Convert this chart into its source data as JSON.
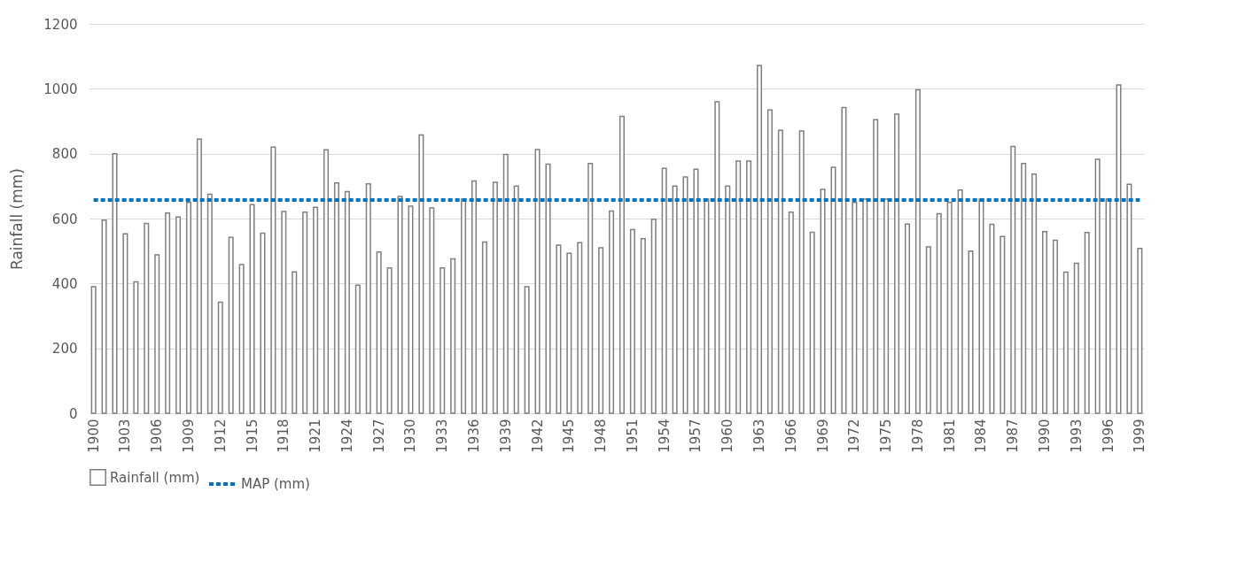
{
  "chart_data": {
    "type": "bar",
    "ylabel": "Rainfall (mm)",
    "categories": [
      "1900",
      null,
      null,
      "1903",
      null,
      null,
      "1906",
      null,
      null,
      "1909",
      null,
      null,
      "1912",
      null,
      null,
      "1915",
      null,
      null,
      "1918",
      null,
      null,
      "1921",
      null,
      null,
      "1924",
      null,
      null,
      "1927",
      null,
      null,
      "1930",
      null,
      null,
      "1933",
      null,
      null,
      "1936",
      null,
      null,
      "1939",
      null,
      null,
      "1942",
      null,
      null,
      "1945",
      null,
      null,
      "1948",
      null,
      null,
      "1951",
      null,
      null,
      "1954",
      null,
      null,
      "1957",
      null,
      null,
      "1960",
      null,
      null,
      "1963",
      null,
      null,
      "1966",
      null,
      null,
      "1969",
      null,
      null,
      "1972",
      null,
      null,
      "1975",
      null,
      null,
      "1978",
      null,
      null,
      "1981",
      null,
      null,
      "1984",
      null,
      null,
      "1987",
      null,
      null,
      "1990",
      null,
      null,
      "1993",
      null,
      null,
      "1996",
      null,
      null,
      "1999"
    ],
    "series": [
      {
        "name": "Rainfall (mm)",
        "color": "#ffffff",
        "values": [
          390,
          595,
          800,
          553,
          405,
          585,
          488,
          617,
          605,
          650,
          845,
          675,
          342,
          542,
          458,
          643,
          555,
          820,
          622,
          436,
          620,
          635,
          812,
          710,
          683,
          395,
          707,
          497,
          448,
          668,
          638,
          858,
          633,
          448,
          476,
          660,
          716,
          528,
          712,
          798,
          700,
          390,
          813,
          768,
          518,
          493,
          526,
          770,
          510,
          623,
          915,
          566,
          538,
          598,
          755,
          700,
          728,
          752,
          660,
          960,
          700,
          777,
          777,
          1072,
          935,
          872,
          620,
          870,
          558,
          690,
          758,
          942,
          650,
          660,
          905,
          660,
          922,
          583,
          997,
          513,
          615,
          650,
          688,
          500,
          660,
          582,
          545,
          822,
          770,
          737,
          560,
          533,
          435,
          462,
          557,
          783,
          660,
          1012,
          706,
          508
        ]
      },
      {
        "name": "MAP (mm)",
        "type": "line",
        "color": "#0070c0",
        "line_style": "dashed",
        "values": [
          657,
          657,
          657,
          657,
          657,
          657,
          657,
          657,
          657,
          657,
          657,
          657,
          657,
          657,
          657,
          657,
          657,
          657,
          657,
          657,
          657,
          657,
          657,
          657,
          657,
          657,
          657,
          657,
          657,
          657,
          657,
          657,
          657,
          657,
          657,
          657,
          657,
          657,
          657,
          657,
          657,
          657,
          657,
          657,
          657,
          657,
          657,
          657,
          657,
          657,
          657,
          657,
          657,
          657,
          657,
          657,
          657,
          657,
          657,
          657,
          657,
          657,
          657,
          657,
          657,
          657,
          657,
          657,
          657,
          657,
          657,
          657,
          657,
          657,
          657,
          657,
          657,
          657,
          657,
          657,
          657,
          657,
          657,
          657,
          657,
          657,
          657,
          657,
          657,
          657,
          657,
          657,
          657,
          657,
          657,
          657,
          657,
          657,
          657,
          657
        ]
      }
    ],
    "ylim": [
      0,
      1200
    ],
    "yticks": [
      0,
      200,
      400,
      600,
      800,
      1000,
      1200
    ],
    "grid": "y",
    "legend": "bottom"
  }
}
